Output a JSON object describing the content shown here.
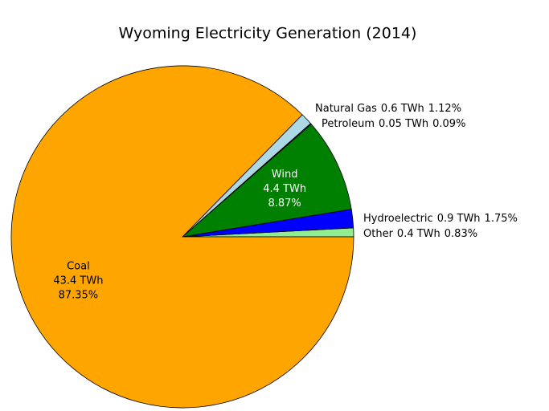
{
  "chart_data": {
    "type": "pie",
    "title": "Wyoming Electricity Generation (2014)",
    "categories": [
      "Other",
      "Hydroelectric",
      "Wind",
      "Petroleum",
      "Natural Gas",
      "Coal"
    ],
    "values": [
      0.83,
      1.75,
      8.87,
      0.09,
      1.12,
      87.35
    ],
    "value_labels": [
      "0.83%",
      "1.75%",
      "8.87%",
      "0.09%",
      "1.12%",
      "87.35%"
    ],
    "generation_twh": [
      0.4,
      0.9,
      4.4,
      0.05,
      0.6,
      43.4
    ],
    "generation_labels": [
      "0.4 TWh",
      "0.9 TWh",
      "4.4 TWh",
      "0.05 TWh",
      "0.6 TWh",
      "43.4 TWh"
    ],
    "colors": [
      "#90ee90",
      "#0000ff",
      "#008000",
      "#555555",
      "#add8e6",
      "#ffa500"
    ],
    "start_angle": 0,
    "direction": "counterclockwise"
  }
}
